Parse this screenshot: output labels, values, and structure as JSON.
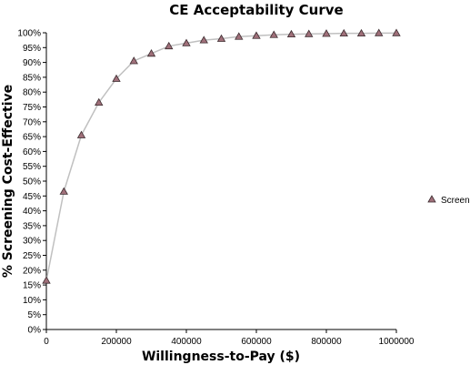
{
  "chart_data": {
    "type": "line",
    "title": "CE Acceptability Curve",
    "xlabel": "Willingness-to-Pay ($)",
    "ylabel": "% Screening Cost-Effective",
    "xlim": [
      0,
      1000000
    ],
    "ylim": [
      0,
      100
    ],
    "x_ticks": [
      "0",
      "200000",
      "400000",
      "600000",
      "800000",
      "1000000"
    ],
    "y_ticks": [
      "0%",
      "5%",
      "10%",
      "15%",
      "20%",
      "25%",
      "30%",
      "35%",
      "40%",
      "45%",
      "50%",
      "55%",
      "60%",
      "65%",
      "70%",
      "75%",
      "80%",
      "85%",
      "90%",
      "95%",
      "100%"
    ],
    "grid": false,
    "legend_position": "right",
    "series": [
      {
        "name": "Screen",
        "marker": "triangle",
        "marker_color": "#a0707a",
        "line_color": "#c0c0c0",
        "x": [
          0,
          50000,
          100000,
          150000,
          200000,
          250000,
          300000,
          350000,
          400000,
          450000,
          500000,
          550000,
          600000,
          650000,
          700000,
          750000,
          800000,
          850000,
          900000,
          950000,
          1000000
        ],
        "values": [
          16.5,
          46.5,
          65.5,
          76.5,
          84.5,
          90.5,
          93,
          95.5,
          96.5,
          97.5,
          98,
          98.7,
          99,
          99.3,
          99.5,
          99.6,
          99.7,
          99.8,
          99.8,
          99.9,
          99.9
        ]
      }
    ]
  }
}
